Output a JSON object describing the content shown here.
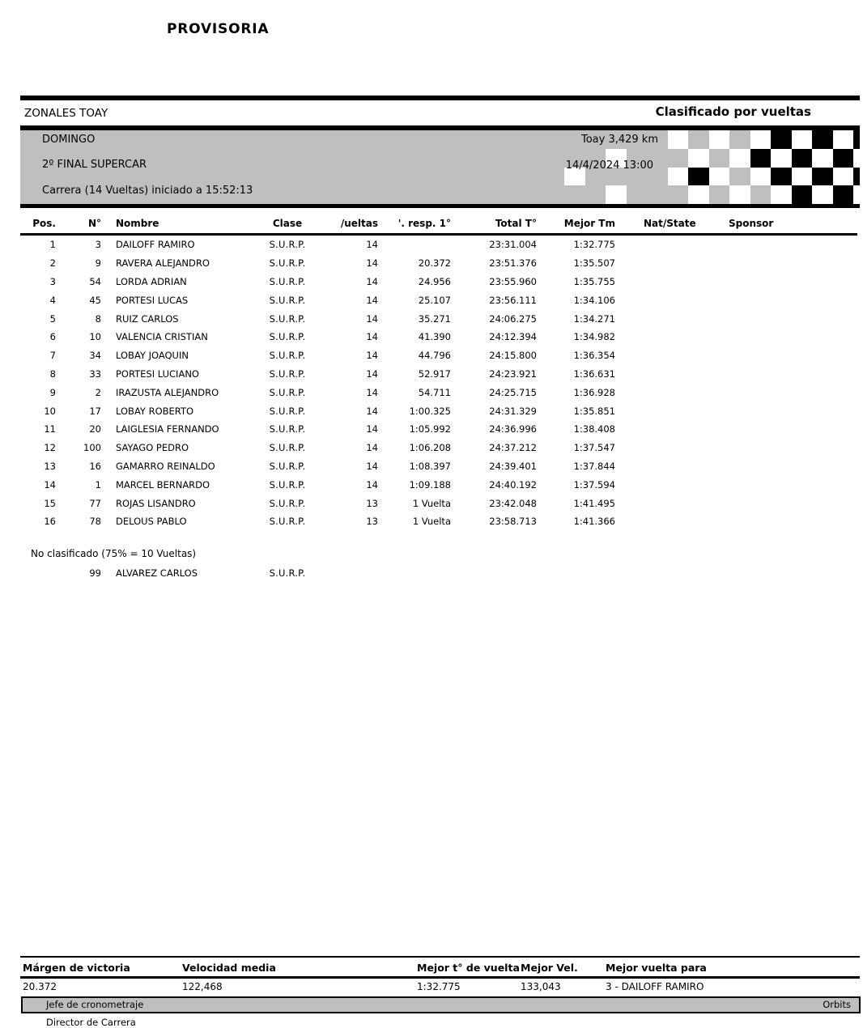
{
  "page": {
    "title": "PROVISORIA"
  },
  "header": {
    "left": "ZONALES TOAY",
    "right": "Clasificado por vueltas"
  },
  "banner": {
    "lines": [
      "DOMINGO",
      "2º FINAL SUPERCAR",
      "Carrera (14 Vueltas) iniciado a 15:52:13"
    ],
    "track_length": "Toay 3,429 km",
    "datetime": "14/4/2024 13:00",
    "checker_rows": [
      "GGGGGWGWGWKWKWK",
      "GGWGGGWGWKWKWKW",
      "WGGGGWKWGWKWKWK",
      "GGWGGGWGWGWKWKW"
    ],
    "colors": {
      "banner_gray": "#bfbfbf",
      "checker_white": "#ffffff",
      "checker_black": "#000000"
    }
  },
  "results_table": {
    "columns": [
      "Pos.",
      "N°",
      "Nombre",
      "Clase",
      "/ueltas",
      "'. resp. 1°",
      "Total T°",
      "Mejor Tm",
      "Nat/State",
      "Sponsor"
    ],
    "rows": [
      {
        "pos": "1",
        "num": "3",
        "nombre": "DAILOFF RAMIRO",
        "clase": "S.U.R.P.",
        "vueltas": "14",
        "resp": "",
        "total": "23:31.004",
        "mejor": "1:32.775"
      },
      {
        "pos": "2",
        "num": "9",
        "nombre": "RAVERA ALEJANDRO",
        "clase": "S.U.R.P.",
        "vueltas": "14",
        "resp": "20.372",
        "total": "23:51.376",
        "mejor": "1:35.507"
      },
      {
        "pos": "3",
        "num": "54",
        "nombre": "LORDA ADRIAN",
        "clase": "S.U.R.P.",
        "vueltas": "14",
        "resp": "24.956",
        "total": "23:55.960",
        "mejor": "1:35.755"
      },
      {
        "pos": "4",
        "num": "45",
        "nombre": "PORTESI LUCAS",
        "clase": "S.U.R.P.",
        "vueltas": "14",
        "resp": "25.107",
        "total": "23:56.111",
        "mejor": "1:34.106"
      },
      {
        "pos": "5",
        "num": "8",
        "nombre": "RUIZ CARLOS",
        "clase": "S.U.R.P.",
        "vueltas": "14",
        "resp": "35.271",
        "total": "24:06.275",
        "mejor": "1:34.271"
      },
      {
        "pos": "6",
        "num": "10",
        "nombre": "VALENCIA CRISTIAN",
        "clase": "S.U.R.P.",
        "vueltas": "14",
        "resp": "41.390",
        "total": "24:12.394",
        "mejor": "1:34.982"
      },
      {
        "pos": "7",
        "num": "34",
        "nombre": "LOBAY JOAQUIN",
        "clase": "S.U.R.P.",
        "vueltas": "14",
        "resp": "44.796",
        "total": "24:15.800",
        "mejor": "1:36.354"
      },
      {
        "pos": "8",
        "num": "33",
        "nombre": "PORTESI LUCIANO",
        "clase": "S.U.R.P.",
        "vueltas": "14",
        "resp": "52.917",
        "total": "24:23.921",
        "mejor": "1:36.631"
      },
      {
        "pos": "9",
        "num": "2",
        "nombre": "IRAZUSTA ALEJANDRO",
        "clase": "S.U.R.P.",
        "vueltas": "14",
        "resp": "54.711",
        "total": "24:25.715",
        "mejor": "1:36.928"
      },
      {
        "pos": "10",
        "num": "17",
        "nombre": "LOBAY ROBERTO",
        "clase": "S.U.R.P.",
        "vueltas": "14",
        "resp": "1:00.325",
        "total": "24:31.329",
        "mejor": "1:35.851"
      },
      {
        "pos": "11",
        "num": "20",
        "nombre": "LAIGLESIA FERNANDO",
        "clase": "S.U.R.P.",
        "vueltas": "14",
        "resp": "1:05.992",
        "total": "24:36.996",
        "mejor": "1:38.408"
      },
      {
        "pos": "12",
        "num": "100",
        "nombre": "SAYAGO PEDRO",
        "clase": "S.U.R.P.",
        "vueltas": "14",
        "resp": "1:06.208",
        "total": "24:37.212",
        "mejor": "1:37.547"
      },
      {
        "pos": "13",
        "num": "16",
        "nombre": "GAMARRO REINALDO",
        "clase": "S.U.R.P.",
        "vueltas": "14",
        "resp": "1:08.397",
        "total": "24:39.401",
        "mejor": "1:37.844"
      },
      {
        "pos": "14",
        "num": "1",
        "nombre": "MARCEL BERNARDO",
        "clase": "S.U.R.P.",
        "vueltas": "14",
        "resp": "1:09.188",
        "total": "24:40.192",
        "mejor": "1:37.594"
      },
      {
        "pos": "15",
        "num": "77",
        "nombre": "ROJAS LISANDRO",
        "clase": "S.U.R.P.",
        "vueltas": "13",
        "resp": "1 Vuelta",
        "total": "23:42.048",
        "mejor": "1:41.495"
      },
      {
        "pos": "16",
        "num": "78",
        "nombre": "DELOUS PABLO",
        "clase": "S.U.R.P.",
        "vueltas": "13",
        "resp": "1 Vuelta",
        "total": "23:58.713",
        "mejor": "1:41.366"
      }
    ]
  },
  "not_classified": {
    "label": "No clasificado (75% = 10 Vueltas)",
    "rows": [
      {
        "num": "99",
        "nombre": "ALVAREZ CARLOS",
        "clase": "S.U.R.P."
      }
    ]
  },
  "footer": {
    "stats": [
      {
        "label": "Márgen de victoria",
        "value": "20.372"
      },
      {
        "label": "Velocidad media",
        "value": "122,468"
      },
      {
        "label": "Mejor t° de vuelta",
        "value": "1:32.775"
      },
      {
        "label": "Mejor Vel.",
        "value": "133,043"
      },
      {
        "label": "Mejor vuelta para",
        "value": "3 - DAILOFF RAMIRO"
      }
    ],
    "signatures": [
      "Jefe de cronometraje",
      "Director de Carrera"
    ],
    "brand": "Orbits"
  }
}
